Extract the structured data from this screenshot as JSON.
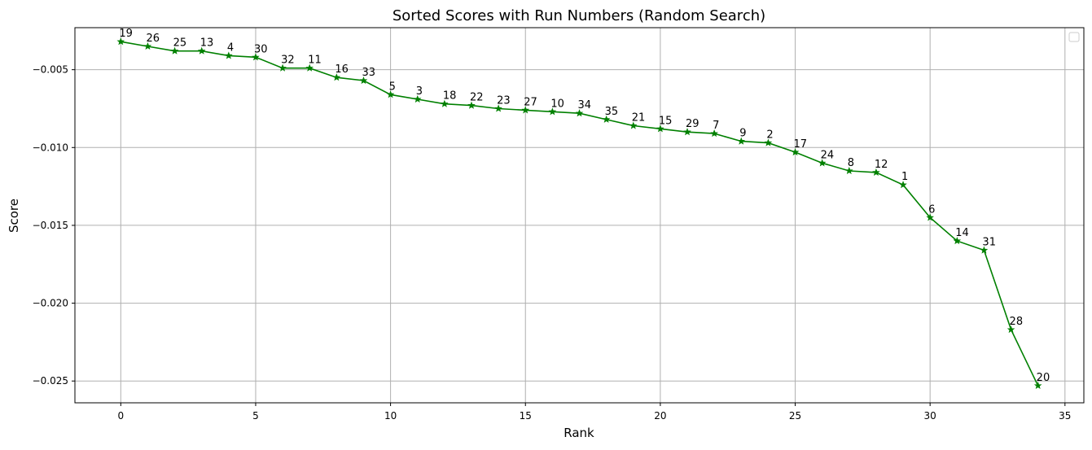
{
  "chart_data": {
    "type": "line",
    "title": "Sorted Scores with Run Numbers (Random Search)",
    "xlabel": "Rank",
    "ylabel": "Score",
    "xlim": [
      -1.7,
      35.7
    ],
    "ylim": [
      -0.0264,
      -0.0023
    ],
    "x_ticks": [
      0,
      5,
      10,
      15,
      20,
      25,
      30,
      35
    ],
    "x_tick_labels": [
      "0",
      "5",
      "10",
      "15",
      "20",
      "25",
      "30",
      "35"
    ],
    "y_ticks": [
      -0.005,
      -0.01,
      -0.015,
      -0.02,
      -0.025
    ],
    "y_tick_labels": [
      "−0.005",
      "−0.010",
      "−0.015",
      "−0.020",
      "−0.025"
    ],
    "grid": true,
    "legend": "top-right (empty)",
    "line_color": "#008000",
    "marker": "star",
    "x": [
      0,
      1,
      2,
      3,
      4,
      5,
      6,
      7,
      8,
      9,
      10,
      11,
      12,
      13,
      14,
      15,
      16,
      17,
      18,
      19,
      20,
      21,
      22,
      23,
      24,
      25,
      26,
      27,
      28,
      29,
      30,
      31,
      32,
      33,
      34
    ],
    "series": [
      {
        "values": [
          -0.0032,
          -0.0035,
          -0.0038,
          -0.0038,
          -0.0041,
          -0.0042,
          -0.0049,
          -0.0049,
          -0.0055,
          -0.0057,
          -0.0066,
          -0.0069,
          -0.0072,
          -0.0073,
          -0.0075,
          -0.0076,
          -0.0077,
          -0.0078,
          -0.0082,
          -0.0086,
          -0.0088,
          -0.009,
          -0.0091,
          -0.0096,
          -0.0097,
          -0.0103,
          -0.011,
          -0.0115,
          -0.0116,
          -0.0124,
          -0.0145,
          -0.016,
          -0.0166,
          -0.0217,
          -0.0253
        ]
      }
    ],
    "annotations": [
      "19",
      "26",
      "25",
      "13",
      "4",
      "30",
      "32",
      "11",
      "16",
      "33",
      "5",
      "3",
      "18",
      "22",
      "23",
      "27",
      "10",
      "34",
      "35",
      "21",
      "15",
      "29",
      "7",
      "9",
      "2",
      "17",
      "24",
      "8",
      "12",
      "1",
      "6",
      "14",
      "31",
      "28",
      "20"
    ]
  }
}
